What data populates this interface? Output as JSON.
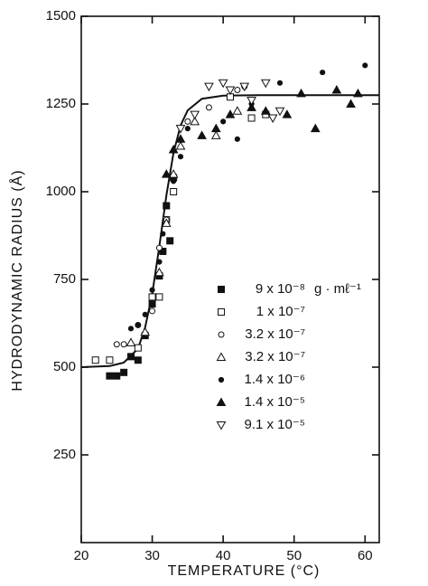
{
  "chart_data": {
    "type": "scatter",
    "xlabel": "TEMPERATURE (°C)",
    "ylabel": "HYDRODYNAMIC RADIUS (Å)",
    "xlim": [
      20,
      62
    ],
    "ylim": [
      0,
      1500
    ],
    "xticks": [
      20,
      30,
      40,
      50,
      60
    ],
    "yticks": [
      250,
      500,
      750,
      1000,
      1250,
      1500
    ],
    "legend_unit": "g · mℓ⁻¹",
    "series": [
      {
        "name": "9 x 10⁻⁸",
        "marker": "square",
        "filled": true,
        "color": "#111111",
        "x": [
          24,
          25,
          26,
          27,
          28,
          29,
          30,
          31,
          31.5,
          32,
          32.5,
          33
        ],
        "values": [
          475,
          475,
          485,
          530,
          520,
          590,
          680,
          760,
          830,
          960,
          860,
          1040
        ]
      },
      {
        "name": "1 x 10⁻⁷",
        "marker": "square",
        "filled": false,
        "color": "#111111",
        "x": [
          22,
          24,
          28,
          30,
          31,
          32,
          33,
          41,
          44,
          46
        ],
        "values": [
          520,
          520,
          555,
          700,
          700,
          920,
          1000,
          1270,
          1210,
          1220
        ]
      },
      {
        "name": "3.2 x 10⁻⁷",
        "marker": "circle",
        "filled": false,
        "color": "#111111",
        "x": [
          25,
          26,
          28,
          30,
          31,
          32,
          35,
          38,
          42,
          43
        ],
        "values": [
          565,
          565,
          620,
          660,
          840,
          920,
          1200,
          1240,
          1290,
          1300
        ]
      },
      {
        "name": "3.2 x 10⁻⁷",
        "marker": "triangle",
        "filled": false,
        "color": "#111111",
        "x": [
          27,
          29,
          31,
          32,
          33,
          34,
          36,
          39,
          42
        ],
        "values": [
          570,
          600,
          770,
          910,
          1050,
          1130,
          1200,
          1160,
          1230
        ]
      },
      {
        "name": "1.4 x 10⁻⁶",
        "marker": "circle",
        "filled": true,
        "color": "#111111",
        "x": [
          27,
          28,
          29,
          30,
          31,
          31.5,
          32,
          33,
          34,
          35,
          40,
          42,
          44,
          48,
          54,
          60
        ],
        "values": [
          610,
          620,
          650,
          720,
          800,
          880,
          960,
          1030,
          1100,
          1180,
          1200,
          1150,
          1250,
          1310,
          1340,
          1360
        ]
      },
      {
        "name": "1.4 x 10⁻⁵",
        "marker": "triangle",
        "filled": true,
        "color": "#111111",
        "x": [
          32,
          33,
          34,
          37,
          39,
          41,
          44,
          46,
          49,
          51,
          53,
          56,
          58,
          59
        ],
        "values": [
          1050,
          1120,
          1150,
          1160,
          1180,
          1220,
          1240,
          1230,
          1220,
          1280,
          1180,
          1290,
          1250,
          1280
        ]
      },
      {
        "name": "9.1 x 10⁻⁵",
        "marker": "triangle-down",
        "filled": false,
        "color": "#111111",
        "x": [
          34,
          36,
          38,
          40,
          41,
          43,
          44,
          46,
          47,
          48
        ],
        "values": [
          1180,
          1220,
          1300,
          1310,
          1290,
          1300,
          1260,
          1310,
          1210,
          1230
        ]
      }
    ],
    "curve": {
      "color": "#111111",
      "x": [
        20,
        24,
        26,
        28,
        29,
        30,
        31,
        32,
        33,
        34,
        35,
        37,
        40,
        45,
        62
      ],
      "values": [
        500,
        503,
        513,
        553,
        613,
        709,
        843,
        990,
        1110,
        1189,
        1232,
        1265,
        1274,
        1275,
        1275
      ]
    }
  }
}
